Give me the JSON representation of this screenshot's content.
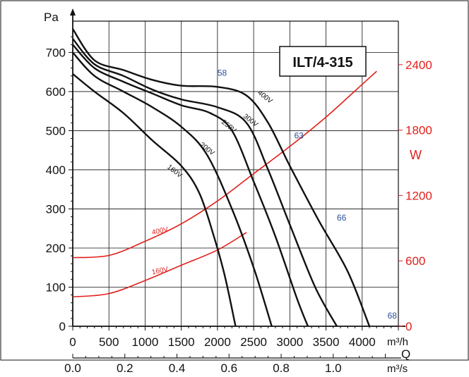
{
  "chart_data": {
    "type": "line",
    "model": "ILT/4-315",
    "y_left": {
      "unit": "Pa",
      "ticks": [
        "0",
        "100",
        "200",
        "300",
        "400",
        "500",
        "600",
        "700"
      ],
      "range": [
        0,
        780
      ]
    },
    "y_right": {
      "unit": "W",
      "ticks": [
        "0",
        "600",
        "1200",
        "1800",
        "2400"
      ],
      "range": [
        0,
        2800
      ]
    },
    "x": {
      "unit": "m³/h",
      "range": [
        0,
        4500
      ],
      "ticks": [
        "0",
        "500",
        "1000",
        "1500",
        "2000",
        "2500",
        "3000",
        "3500",
        "4000"
      ],
      "secondary_label": "Q",
      "secondary_unit": "m³/s",
      "secondary_ticks": [
        "0.0",
        "0.2",
        "0.4",
        "0.6",
        "0.8",
        "1.0"
      ]
    },
    "pressure_series": [
      {
        "name": "160V",
        "points": [
          [
            0,
            645
          ],
          [
            300,
            600
          ],
          [
            700,
            545
          ],
          [
            1100,
            475
          ],
          [
            1500,
            410
          ],
          [
            1750,
            340
          ],
          [
            1950,
            230
          ],
          [
            2100,
            130
          ],
          [
            2250,
            0
          ]
        ]
      },
      {
        "name": "200V",
        "points": [
          [
            0,
            700
          ],
          [
            300,
            640
          ],
          [
            700,
            600
          ],
          [
            1100,
            560
          ],
          [
            1500,
            510
          ],
          [
            1850,
            440
          ],
          [
            2200,
            300
          ],
          [
            2500,
            150
          ],
          [
            2750,
            0
          ]
        ]
      },
      {
        "name": "250V",
        "points": [
          [
            0,
            720
          ],
          [
            300,
            660
          ],
          [
            700,
            625
          ],
          [
            1100,
            595
          ],
          [
            1500,
            565
          ],
          [
            1900,
            545
          ],
          [
            2200,
            500
          ],
          [
            2500,
            370
          ],
          [
            2800,
            230
          ],
          [
            3100,
            70
          ],
          [
            3250,
            0
          ]
        ]
      },
      {
        "name": "300V",
        "points": [
          [
            0,
            735
          ],
          [
            300,
            670
          ],
          [
            700,
            640
          ],
          [
            1100,
            605
          ],
          [
            1500,
            580
          ],
          [
            2000,
            560
          ],
          [
            2400,
            520
          ],
          [
            2700,
            400
          ],
          [
            3000,
            260
          ],
          [
            3350,
            100
          ],
          [
            3650,
            0
          ]
        ]
      },
      {
        "name": "400V",
        "points": [
          [
            0,
            760
          ],
          [
            300,
            680
          ],
          [
            700,
            655
          ],
          [
            1100,
            630
          ],
          [
            1500,
            615
          ],
          [
            2000,
            612
          ],
          [
            2400,
            590
          ],
          [
            2700,
            520
          ],
          [
            3000,
            410
          ],
          [
            3400,
            270
          ],
          [
            3800,
            140
          ],
          [
            4100,
            0
          ]
        ]
      }
    ],
    "power_series": [
      {
        "name": "400V",
        "points": [
          [
            0,
            630
          ],
          [
            500,
            650
          ],
          [
            1000,
            780
          ],
          [
            1500,
            940
          ],
          [
            2000,
            1150
          ],
          [
            2500,
            1400
          ],
          [
            3000,
            1650
          ],
          [
            3500,
            1920
          ],
          [
            4000,
            2220
          ],
          [
            4200,
            2340
          ]
        ]
      },
      {
        "name": "160V",
        "points": [
          [
            0,
            270
          ],
          [
            500,
            300
          ],
          [
            1000,
            420
          ],
          [
            1500,
            560
          ],
          [
            2000,
            700
          ],
          [
            2400,
            860
          ]
        ]
      }
    ],
    "curve_labels": {
      "pressure": [
        {
          "text": "400V",
          "x": 2550,
          "y": 595
        },
        {
          "text": "300V",
          "x": 2350,
          "y": 535
        },
        {
          "text": "250V",
          "x": 2050,
          "y": 520
        },
        {
          "text": "200V",
          "x": 1750,
          "y": 462
        },
        {
          "text": "160V",
          "x": 1300,
          "y": 405
        }
      ],
      "power": [
        {
          "text": "400V",
          "x": 1100,
          "y": 840
        },
        {
          "text": "160V",
          "x": 1100,
          "y": 475
        }
      ]
    },
    "noise_labels": [
      {
        "text": "58",
        "x": 2000,
        "y": 640
      },
      {
        "text": "63",
        "x": 3060,
        "y": 480
      },
      {
        "text": "66",
        "x": 3650,
        "y": 270
      },
      {
        "text": "68",
        "x": 4350,
        "y": 20
      }
    ]
  },
  "colors": {
    "pressure": "#111111",
    "power": "#e0201b",
    "noise": "#2a4f9a",
    "grid": "#111111"
  }
}
